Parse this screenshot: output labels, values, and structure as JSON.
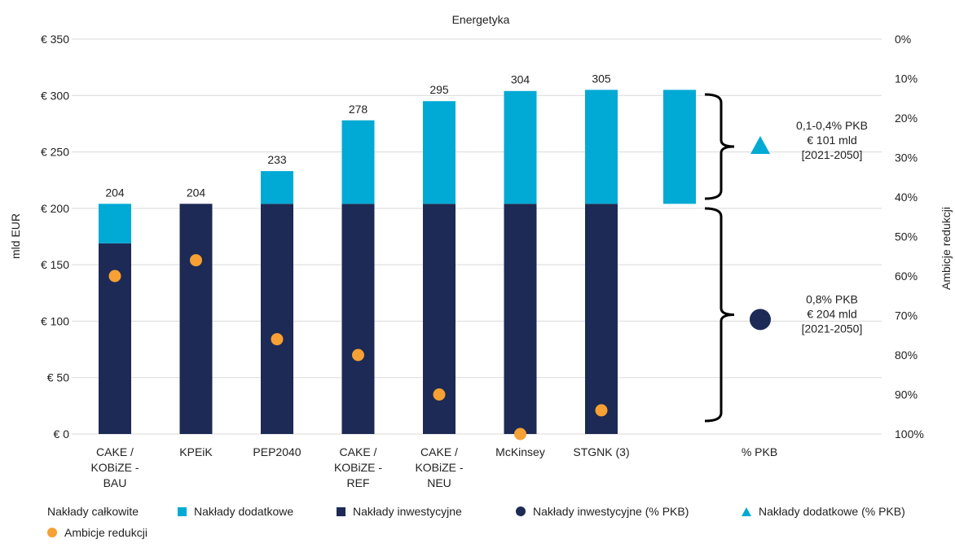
{
  "chart_data": {
    "type": "bar",
    "title": "Energetyka",
    "ylabel": "mld EUR",
    "y2label": "Ambicje redukcji",
    "ylim": [
      0,
      350
    ],
    "y_ticks": [
      "€ 0",
      "€ 50",
      "€ 100",
      "€ 150",
      "€ 200",
      "€ 250",
      "€ 300",
      "€ 350"
    ],
    "y2lim": [
      0,
      100
    ],
    "y2_inverted": true,
    "y2_ticks": [
      "0%",
      "10%",
      "20%",
      "30%",
      "40%",
      "50%",
      "60%",
      "70%",
      "80%",
      "90%",
      "100%"
    ],
    "grid": true,
    "legend_position": "bottom",
    "categories": [
      [
        "CAKE /",
        "KOBiZE -",
        "BAU"
      ],
      [
        "KPEiK"
      ],
      [
        "PEP2040"
      ],
      [
        "CAKE /",
        "KOBiZE -",
        "REF"
      ],
      [
        "CAKE /",
        "KOBiZE -",
        "NEU"
      ],
      [
        "McKinsey"
      ],
      [
        "STGNK (3)"
      ],
      [
        "% PKB"
      ]
    ],
    "totals": [
      "204",
      "204",
      "233",
      "278",
      "295",
      "304",
      "305",
      ""
    ],
    "series": [
      {
        "name": "Nakłady inwestycyjne",
        "stack": true,
        "color": "#1c2a55",
        "values": [
          169,
          204,
          204,
          204,
          204,
          204,
          204,
          null
        ]
      },
      {
        "name": "Nakłady dodatkowe",
        "stack": true,
        "color": "#00aad4",
        "values": [
          35,
          0,
          29,
          74,
          91,
          100,
          101,
          null
        ]
      },
      {
        "name": "Ambicje redukcji",
        "axis": "right",
        "color": "#f7a033",
        "values_pct": [
          60,
          56,
          76,
          80,
          90,
          100,
          94,
          null
        ]
      }
    ],
    "pkb_bar": {
      "bottom": 204,
      "top": 305,
      "color": "#00aad4"
    },
    "pkb_annotations": [
      {
        "marker": "triangle",
        "color": "#00aad4",
        "y_pct": 27,
        "lines": [
          "0,1-0,4% PKB",
          "€ 101 mld",
          "[2021-2050]"
        ]
      },
      {
        "marker": "circle",
        "color": "#1c2a55",
        "y_pct": 71,
        "lines": [
          "0,8% PKB",
          "€ 204 mld",
          "[2021-2050]"
        ]
      }
    ]
  },
  "legend": {
    "items": [
      {
        "label": "Nakłady całkowite",
        "marker": "none",
        "color": ""
      },
      {
        "label": "Nakłady dodatkowe",
        "marker": "square",
        "color": "#00aad4"
      },
      {
        "label": "Nakłady inwestycyjne",
        "marker": "square",
        "color": "#1c2a55"
      },
      {
        "label": "Nakłady inwestycyjne (% PKB)",
        "marker": "circle",
        "color": "#1c2a55"
      },
      {
        "label": "Nakłady dodatkowe (% PKB)",
        "marker": "triangle",
        "color": "#00aad4"
      },
      {
        "label": "Ambicje redukcji",
        "marker": "circle",
        "color": "#f7a033"
      }
    ]
  }
}
